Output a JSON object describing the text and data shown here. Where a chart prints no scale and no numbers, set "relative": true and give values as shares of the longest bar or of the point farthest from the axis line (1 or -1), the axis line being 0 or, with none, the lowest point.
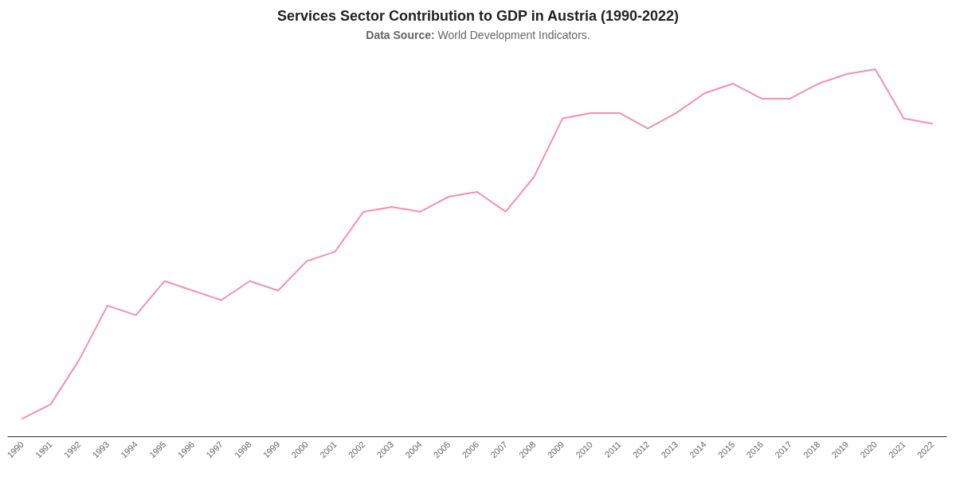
{
  "chart_data": {
    "type": "line",
    "title": "Services Sector Contribution to GDP in Austria (1990-2022)",
    "subtitle": "Data Source: World Development Indicators.",
    "categories": [
      "1990",
      "1991",
      "1992",
      "1993",
      "1994",
      "1995",
      "1996",
      "1997",
      "1998",
      "1999",
      "2000",
      "2001",
      "2002",
      "2003",
      "2004",
      "2005",
      "2006",
      "2007",
      "2008",
      "2009",
      "2010",
      "2011",
      "2012",
      "2013",
      "2014",
      "2015",
      "2016",
      "2017",
      "2018",
      "2019",
      "2020",
      "2021",
      "2022"
    ],
    "series": [
      {
        "color": "#f48fb1",
        "values": [
          0.048,
          0.087,
          0.208,
          0.356,
          0.33,
          0.423,
          0.397,
          0.371,
          0.423,
          0.397,
          0.477,
          0.503,
          0.612,
          0.625,
          0.612,
          0.653,
          0.666,
          0.612,
          0.707,
          0.866,
          0.881,
          0.881,
          0.839,
          0.881,
          0.935,
          0.961,
          0.92,
          0.92,
          0.961,
          0.987,
          1,
          0.866,
          0.852
        ]
      }
    ],
    "relative": true,
    "grid": false,
    "marker": "none",
    "line_style": "solid"
  }
}
